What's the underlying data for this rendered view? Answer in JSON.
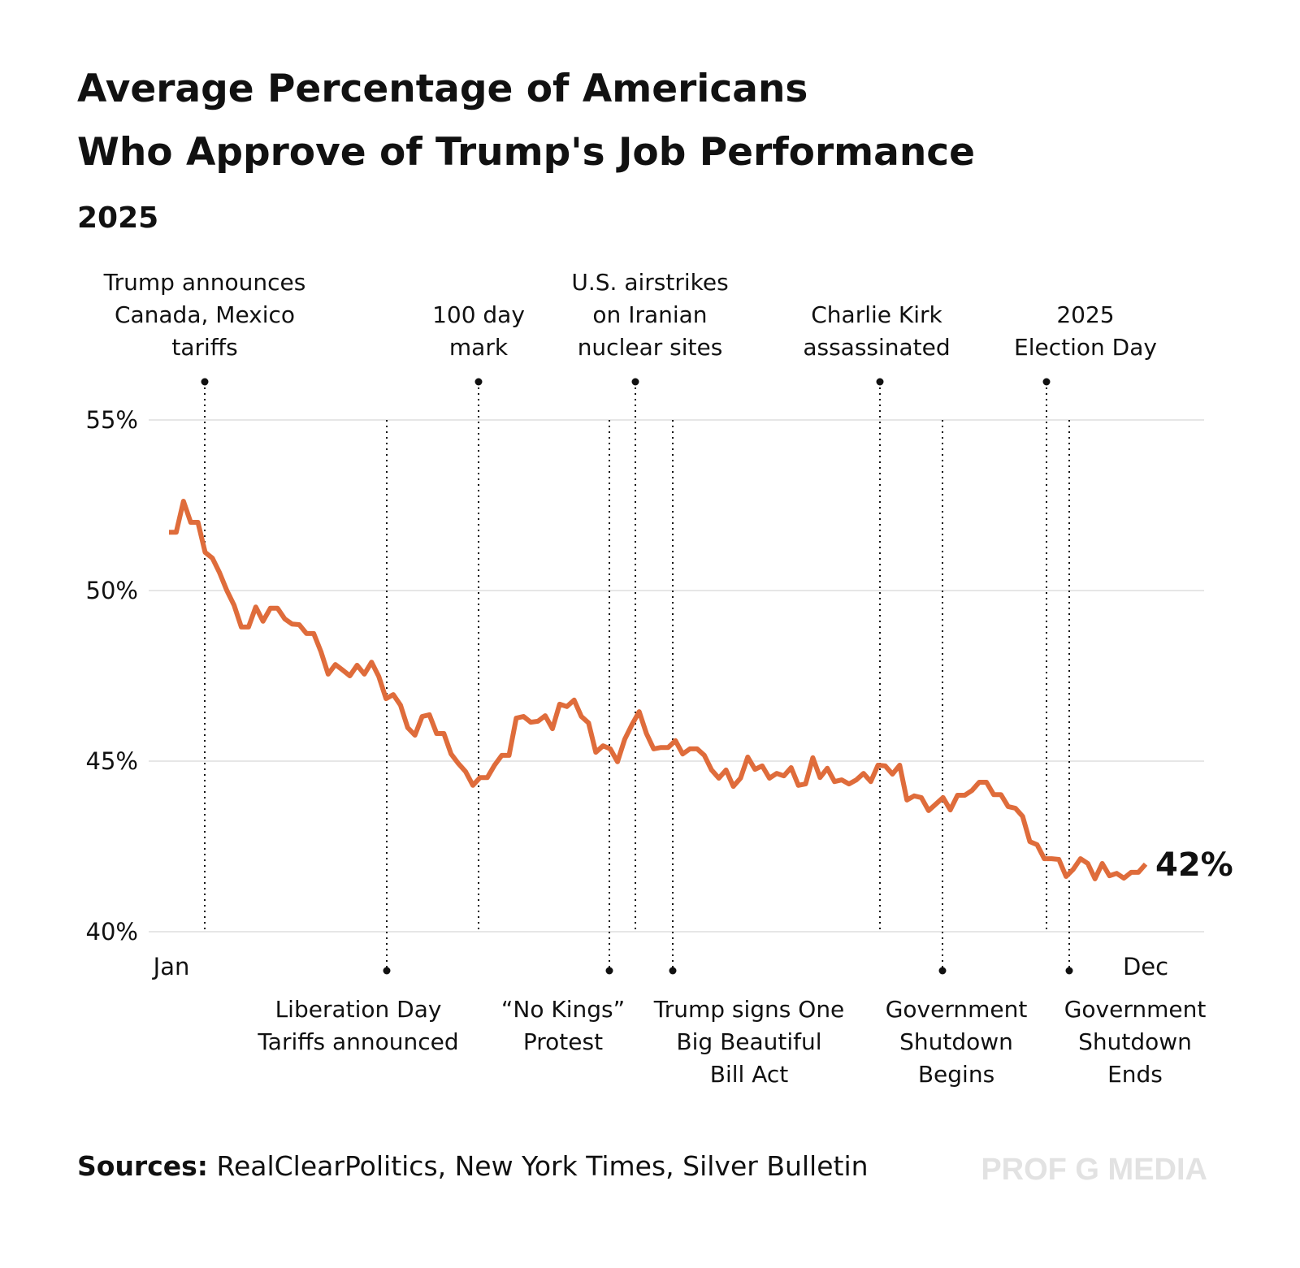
{
  "chart_data": {
    "type": "line",
    "title": [
      "Average Percentage of Americans",
      "Who Approve of Trump's Job Performance"
    ],
    "subtitle": "2025",
    "categories": [
      "Jan",
      null,
      null,
      null,
      null,
      null,
      null,
      null,
      null,
      null,
      null,
      null,
      null,
      null,
      null,
      null,
      null,
      null,
      null,
      null,
      null,
      null,
      null,
      null,
      null,
      null,
      null,
      null,
      null,
      null,
      null,
      null,
      null,
      null,
      null,
      null,
      null,
      null,
      null,
      null,
      null,
      null,
      null,
      null,
      null,
      null,
      null,
      null,
      null,
      null,
      null,
      null,
      null,
      null,
      null,
      null,
      null,
      null,
      null,
      null,
      null,
      null,
      null,
      null,
      null,
      null,
      null,
      null,
      null,
      null,
      null,
      null,
      null,
      null,
      null,
      null,
      null,
      null,
      null,
      null,
      null,
      null,
      null,
      null,
      null,
      null,
      null,
      null,
      null,
      null,
      null,
      null,
      null,
      null,
      null,
      null,
      null,
      null,
      null,
      null,
      null,
      null,
      null,
      null,
      null,
      null,
      null,
      null,
      null,
      null,
      null,
      null,
      null,
      null,
      null,
      null,
      null,
      null,
      null,
      null,
      null,
      null,
      null,
      null,
      null,
      null,
      null,
      null,
      null,
      null,
      null,
      null,
      null,
      null,
      null,
      "Dec"
    ],
    "series": [
      {
        "name": "Approval",
        "color": "#df6c3b",
        "values": [
          51.71,
          51.71,
          52.62,
          52.0,
          52.0,
          51.12,
          50.95,
          50.52,
          50.0,
          49.57,
          48.93,
          48.93,
          49.52,
          49.1,
          49.48,
          49.48,
          49.17,
          49.02,
          49.0,
          48.74,
          48.74,
          48.21,
          47.55,
          47.83,
          47.67,
          47.5,
          47.81,
          47.55,
          47.9,
          47.48,
          46.83,
          46.95,
          46.64,
          45.98,
          45.76,
          46.31,
          46.36,
          45.81,
          45.81,
          45.21,
          44.93,
          44.69,
          44.29,
          44.52,
          44.52,
          44.88,
          45.17,
          45.17,
          46.26,
          46.31,
          46.14,
          46.17,
          46.33,
          45.95,
          46.67,
          46.6,
          46.79,
          46.31,
          46.12,
          45.26,
          45.45,
          45.36,
          44.98,
          45.64,
          46.07,
          46.45,
          45.81,
          45.36,
          45.4,
          45.4,
          45.6,
          45.21,
          45.36,
          45.36,
          45.17,
          44.74,
          44.5,
          44.74,
          44.26,
          44.5,
          45.12,
          44.76,
          44.86,
          44.5,
          44.64,
          44.57,
          44.81,
          44.29,
          44.33,
          45.1,
          44.52,
          44.79,
          44.4,
          44.45,
          44.33,
          44.45,
          44.64,
          44.4,
          44.88,
          44.86,
          44.62,
          44.88,
          43.86,
          43.98,
          43.93,
          43.55,
          43.74,
          43.93,
          43.57,
          44.0,
          44.0,
          44.14,
          44.38,
          44.38,
          44.02,
          44.02,
          43.67,
          43.62,
          43.38,
          42.64,
          42.55,
          42.14,
          42.14,
          42.12,
          41.62,
          41.83,
          42.14,
          42.0,
          41.55,
          42.0,
          41.64,
          41.71,
          41.57,
          41.74,
          41.74,
          41.98
        ],
        "value_labels": [
          null,
          null,
          null,
          null,
          null,
          null,
          null,
          null,
          null,
          null,
          null,
          null,
          null,
          null,
          null,
          null,
          null,
          null,
          null,
          null,
          null,
          null,
          null,
          null,
          null,
          null,
          null,
          null,
          null,
          null,
          null,
          null,
          null,
          null,
          null,
          null,
          null,
          null,
          null,
          null,
          null,
          null,
          null,
          null,
          null,
          null,
          null,
          null,
          null,
          null,
          null,
          null,
          null,
          null,
          null,
          null,
          null,
          null,
          null,
          null,
          null,
          null,
          null,
          null,
          null,
          null,
          null,
          null,
          null,
          null,
          null,
          null,
          null,
          null,
          null,
          null,
          null,
          null,
          null,
          null,
          null,
          null,
          null,
          null,
          null,
          null,
          null,
          null,
          null,
          null,
          null,
          null,
          null,
          null,
          null,
          null,
          null,
          null,
          null,
          null,
          null,
          null,
          null,
          null,
          null,
          null,
          null,
          null,
          null,
          null,
          null,
          null,
          null,
          null,
          null,
          null,
          null,
          null,
          null,
          null,
          null,
          null,
          null,
          null,
          null,
          null,
          null,
          null,
          null,
          null,
          null,
          null,
          null,
          null,
          null,
          "42%"
        ]
      }
    ],
    "ylim": [
      40,
      55
    ],
    "yticks": [
      {
        "value": 40,
        "label": "40%"
      },
      {
        "value": 45,
        "label": "45%"
      },
      {
        "value": 50,
        "label": "50%"
      },
      {
        "value": 55,
        "label": "55%"
      }
    ],
    "grid": true,
    "annotations": [
      {
        "position": "top",
        "lines": [
          "Trump announces",
          "Canada, Mexico",
          "tariffs"
        ]
      },
      {
        "position": "bottom",
        "lines": [
          "Liberation Day",
          "Tariffs announced"
        ]
      },
      {
        "position": "top",
        "lines": [
          "100 day",
          "mark"
        ]
      },
      {
        "position": "bottom",
        "lines": [
          "“No Kings”",
          "Protest"
        ]
      },
      {
        "position": "top",
        "lines": [
          "U.S. airstrikes",
          "on Iranian",
          "nuclear sites"
        ]
      },
      {
        "position": "bottom",
        "lines": [
          "Trump signs One",
          "Big Beautiful",
          "Bill Act"
        ]
      },
      {
        "position": "top",
        "lines": [
          "Charlie Kirk",
          "assassinated"
        ]
      },
      {
        "position": "bottom",
        "lines": [
          "Government",
          "Shutdown",
          "Begins"
        ]
      },
      {
        "position": "top",
        "lines": [
          "2025",
          "Election Day"
        ]
      },
      {
        "position": "bottom",
        "lines": [
          "Government",
          "Shutdown",
          "Ends"
        ]
      }
    ],
    "source_label": "Sources:",
    "source": "RealClearPolitics, New York Times, Silver Bulletin",
    "watermark": "PROF G MEDIA"
  }
}
